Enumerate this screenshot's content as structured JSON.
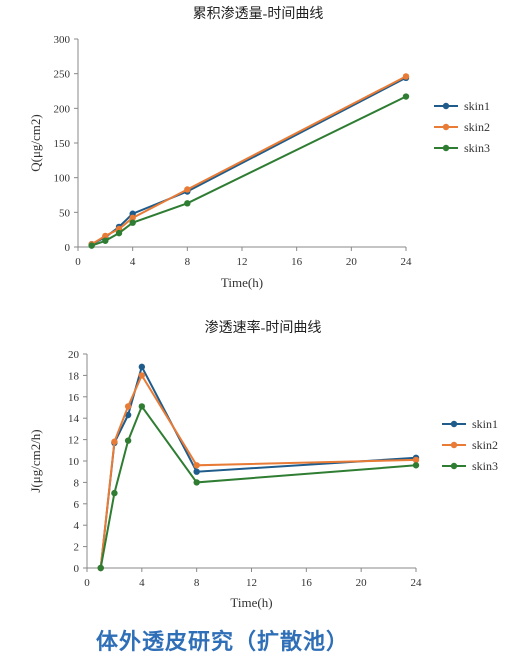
{
  "chart_data": [
    {
      "type": "line",
      "title": "累积渗透量-时间曲线",
      "xlabel": "Time(h)",
      "ylabel": "Q(μg/cm2)",
      "xlim": [
        0,
        24
      ],
      "ylim": [
        0,
        300
      ],
      "xticks": [
        0,
        4,
        8,
        12,
        16,
        20,
        24
      ],
      "yticks": [
        0,
        50,
        100,
        150,
        200,
        250,
        300
      ],
      "legend": "right",
      "grid": false,
      "x": [
        1,
        2,
        3,
        4,
        8,
        24
      ],
      "series": [
        {
          "name": "skin1",
          "color": "#1f5c8b",
          "values": [
            4,
            14,
            29,
            48,
            80,
            244
          ]
        },
        {
          "name": "skin2",
          "color": "#e87b36",
          "values": [
            4,
            16,
            26,
            42,
            83,
            246
          ]
        },
        {
          "name": "skin3",
          "color": "#2e7d32",
          "values": [
            2,
            9,
            20,
            35,
            63,
            217
          ]
        }
      ]
    },
    {
      "type": "line",
      "title": "渗透速率-时间曲线",
      "xlabel": "Time(h)",
      "ylabel": "J(μg/cm2/h)",
      "xlim": [
        0,
        24
      ],
      "ylim": [
        0,
        20
      ],
      "xticks": [
        0,
        4,
        8,
        12,
        16,
        20,
        24
      ],
      "yticks": [
        0,
        2,
        4,
        6,
        8,
        10,
        12,
        14,
        16,
        18,
        20
      ],
      "legend": "right",
      "grid": false,
      "x": [
        1,
        2,
        3,
        4,
        8,
        24
      ],
      "series": [
        {
          "name": "skin1",
          "color": "#1f5c8b",
          "values": [
            0,
            11.7,
            14.3,
            18.8,
            9.0,
            10.3
          ]
        },
        {
          "name": "skin2",
          "color": "#e87b36",
          "values": [
            0,
            11.8,
            15.1,
            18.0,
            9.6,
            10.1
          ]
        },
        {
          "name": "skin3",
          "color": "#2e7d32",
          "values": [
            0,
            7.0,
            11.9,
            15.1,
            8.0,
            9.6
          ]
        }
      ]
    }
  ],
  "caption": "体外透皮研究（扩散池）"
}
